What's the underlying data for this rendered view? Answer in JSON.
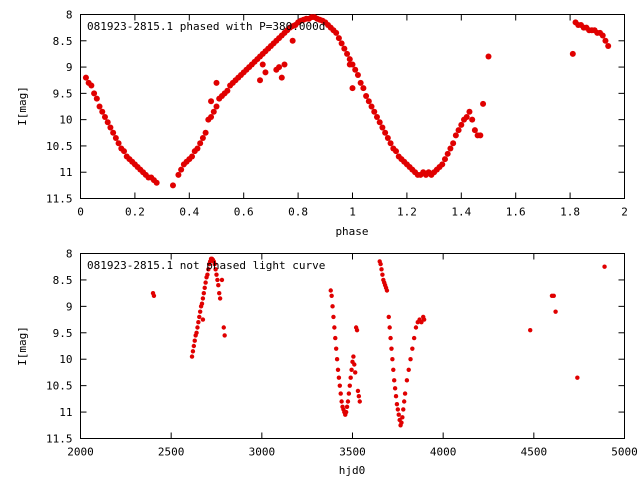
{
  "chart_data": [
    {
      "type": "scatter",
      "title": "081923-2815.1 phased with P=380.000d",
      "xlabel": "phase",
      "ylabel": "I[mag]",
      "xlim": [
        0,
        2
      ],
      "ylim": [
        11.5,
        8
      ],
      "y_inverted": true,
      "x_ticks": [
        "0",
        "0.2",
        "0.4",
        "0.6",
        "0.8",
        "1",
        "1.2",
        "1.4",
        "1.6",
        "1.8",
        "2"
      ],
      "y_ticks": [
        "8",
        "8.5",
        "9",
        "9.5",
        "10",
        "10.5",
        "11",
        "11.5"
      ],
      "grid": false,
      "legend": "none",
      "color": "#e00000",
      "series": [
        {
          "x": [
            0.02,
            0.03,
            0.04,
            0.05,
            0.06,
            0.07,
            0.08,
            0.09,
            0.1,
            0.11,
            0.12,
            0.13,
            0.14,
            0.15,
            0.16,
            0.17,
            0.18,
            0.19,
            0.2,
            0.21,
            0.22,
            0.23,
            0.24,
            0.25,
            0.26,
            0.27,
            0.28,
            0.34,
            0.36,
            0.37,
            0.38,
            0.39,
            0.4,
            0.41,
            0.42,
            0.43,
            0.44,
            0.45,
            0.46,
            0.47,
            0.48,
            0.49,
            0.5,
            0.51,
            0.52,
            0.53,
            0.54,
            0.55,
            0.56,
            0.57,
            0.58,
            0.59,
            0.6,
            0.61,
            0.62,
            0.63,
            0.64,
            0.65,
            0.66,
            0.67,
            0.68,
            0.69,
            0.7,
            0.71,
            0.72,
            0.73,
            0.74,
            0.75,
            0.76,
            0.77,
            0.78,
            0.79,
            0.8,
            0.81,
            0.82,
            0.83,
            0.84,
            0.85,
            0.86,
            0.87,
            0.88,
            0.89,
            0.9,
            0.91,
            0.92,
            0.93,
            0.94,
            0.95,
            0.96,
            0.97,
            0.98,
            0.99,
            1.0,
            1.01,
            1.02,
            1.03,
            1.04,
            1.05,
            1.06,
            1.07,
            1.08,
            1.09,
            1.1,
            1.11,
            1.12,
            1.13,
            1.14,
            1.15,
            1.16,
            1.17,
            1.18,
            1.19,
            1.2,
            1.21,
            1.22,
            1.23,
            1.24,
            1.25,
            1.26,
            1.27,
            1.28,
            1.29,
            1.3,
            1.31,
            1.32,
            1.33,
            1.34,
            1.35,
            1.36,
            1.37,
            1.38,
            1.39,
            1.4,
            1.41,
            1.42,
            1.43,
            1.44,
            1.45,
            1.46,
            1.47,
            1.48,
            0.48,
            0.5,
            0.66,
            0.67,
            0.68,
            0.72,
            0.73,
            0.74,
            0.75,
            0.78,
            0.99,
            1.0,
            1.5,
            1.81,
            1.82,
            1.83,
            1.84,
            1.85,
            1.86,
            1.87,
            1.88,
            1.89,
            1.9,
            1.91,
            1.92,
            1.93,
            1.94
          ],
          "y": [
            9.2,
            9.3,
            9.35,
            9.5,
            9.6,
            9.75,
            9.85,
            9.95,
            10.05,
            10.15,
            10.25,
            10.35,
            10.45,
            10.55,
            10.6,
            10.7,
            10.75,
            10.8,
            10.85,
            10.9,
            10.95,
            11.0,
            11.05,
            11.1,
            11.1,
            11.15,
            11.2,
            11.25,
            11.05,
            10.95,
            10.85,
            10.8,
            10.75,
            10.7,
            10.6,
            10.55,
            10.45,
            10.35,
            10.25,
            10.0,
            9.95,
            9.85,
            9.75,
            9.6,
            9.55,
            9.5,
            9.45,
            9.35,
            9.3,
            9.25,
            9.2,
            9.15,
            9.1,
            9.05,
            9.0,
            8.95,
            8.9,
            8.85,
            8.8,
            8.75,
            8.7,
            8.65,
            8.6,
            8.55,
            8.5,
            8.45,
            8.4,
            8.35,
            8.3,
            8.25,
            8.22,
            8.2,
            8.15,
            8.12,
            8.1,
            8.08,
            8.08,
            8.05,
            8.05,
            8.08,
            8.1,
            8.12,
            8.15,
            8.2,
            8.25,
            8.3,
            8.35,
            8.45,
            8.55,
            8.65,
            8.75,
            8.85,
            8.95,
            9.05,
            9.15,
            9.3,
            9.4,
            9.55,
            9.65,
            9.75,
            9.85,
            9.95,
            10.05,
            10.15,
            10.25,
            10.35,
            10.45,
            10.55,
            10.6,
            10.7,
            10.75,
            10.8,
            10.85,
            10.9,
            10.95,
            11.0,
            11.05,
            11.05,
            11.0,
            11.05,
            11.0,
            11.05,
            11.0,
            10.95,
            10.9,
            10.85,
            10.75,
            10.65,
            10.55,
            10.45,
            10.3,
            10.2,
            10.1,
            10.0,
            9.95,
            9.85,
            10.0,
            10.2,
            10.3,
            10.3,
            9.7,
            9.65,
            9.3,
            9.25,
            8.95,
            9.1,
            9.05,
            9.0,
            9.2,
            8.95,
            8.5,
            8.95,
            9.4,
            8.8,
            8.75,
            8.15,
            8.2,
            8.2,
            8.25,
            8.25,
            8.3,
            8.3,
            8.3,
            8.35,
            8.35,
            8.4,
            8.5,
            8.6
          ]
        }
      ]
    },
    {
      "type": "scatter",
      "title": "081923-2815.1 not phased light curve",
      "xlabel": "hjd0",
      "ylabel": "I[mag]",
      "xlim": [
        2000,
        5000
      ],
      "ylim": [
        11.5,
        8
      ],
      "y_inverted": true,
      "x_ticks": [
        "2000",
        "2500",
        "3000",
        "3500",
        "4000",
        "4500",
        "5000"
      ],
      "y_ticks": [
        "8",
        "8.5",
        "9",
        "9.5",
        "10",
        "10.5",
        "11",
        "11.5"
      ],
      "grid": false,
      "legend": "none",
      "color": "#e00000",
      "series": [
        {
          "x": [
            2400,
            2405,
            2615,
            2620,
            2625,
            2630,
            2635,
            2640,
            2645,
            2650,
            2655,
            2660,
            2665,
            2670,
            2675,
            2680,
            2685,
            2690,
            2695,
            2700,
            2705,
            2710,
            2715,
            2720,
            2725,
            2730,
            2735,
            2740,
            2745,
            2750,
            2755,
            2760,
            2765,
            2770,
            2675,
            2780,
            2790,
            2795,
            3380,
            3385,
            3390,
            3395,
            3400,
            3405,
            3410,
            3415,
            3420,
            3425,
            3430,
            3435,
            3440,
            3445,
            3450,
            3455,
            3460,
            3465,
            3470,
            3475,
            3480,
            3485,
            3490,
            3495,
            3500,
            3505,
            3510,
            3515,
            3520,
            3525,
            3530,
            3535,
            3540,
            3650,
            3655,
            3660,
            3665,
            3670,
            3675,
            3680,
            3685,
            3690,
            3700,
            3705,
            3710,
            3715,
            3720,
            3725,
            3730,
            3735,
            3740,
            3745,
            3750,
            3755,
            3760,
            3765,
            3770,
            3775,
            3780,
            3785,
            3790,
            3800,
            3810,
            3820,
            3830,
            3840,
            3850,
            3860,
            3870,
            3880,
            3890,
            3895,
            4480,
            4600,
            4610,
            4620,
            4740,
            4890
          ],
          "y": [
            8.75,
            8.8,
            9.95,
            9.85,
            9.75,
            9.65,
            9.55,
            9.5,
            9.4,
            9.3,
            9.2,
            9.1,
            9.0,
            8.95,
            8.85,
            8.75,
            8.65,
            8.55,
            8.45,
            8.4,
            8.3,
            8.2,
            8.15,
            8.1,
            8.1,
            8.12,
            8.15,
            8.2,
            8.3,
            8.4,
            8.5,
            8.6,
            8.75,
            8.85,
            9.25,
            8.5,
            9.4,
            9.55,
            8.7,
            8.8,
            9.0,
            9.2,
            9.4,
            9.6,
            9.8,
            10.0,
            10.2,
            10.35,
            10.5,
            10.65,
            10.8,
            10.9,
            10.95,
            11.0,
            11.05,
            11.0,
            10.9,
            10.8,
            10.65,
            10.5,
            10.35,
            10.2,
            10.05,
            9.95,
            10.1,
            10.25,
            9.4,
            9.45,
            10.6,
            10.7,
            10.8,
            8.15,
            8.2,
            8.3,
            8.4,
            8.5,
            8.55,
            8.6,
            8.65,
            8.7,
            9.2,
            9.4,
            9.6,
            9.8,
            10.0,
            10.2,
            10.4,
            10.55,
            10.7,
            10.85,
            10.95,
            11.05,
            11.15,
            11.25,
            11.2,
            11.1,
            10.95,
            10.8,
            10.65,
            10.4,
            10.2,
            10.0,
            9.8,
            9.6,
            9.4,
            9.3,
            9.25,
            9.3,
            9.2,
            9.25,
            9.45,
            8.8,
            8.8,
            9.1,
            10.35,
            8.25
          ]
        }
      ]
    }
  ]
}
